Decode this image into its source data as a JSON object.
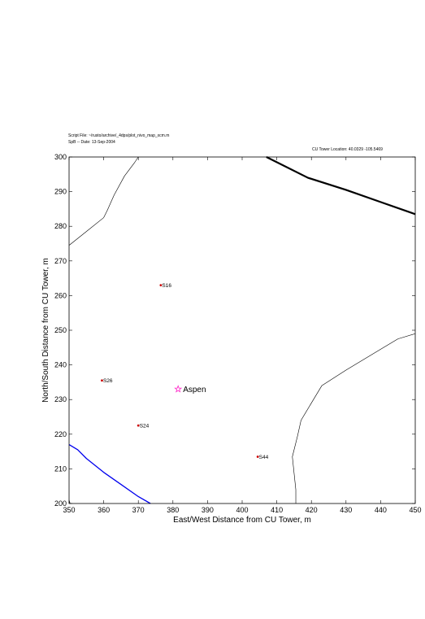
{
  "header": {
    "script_file": "Script File: ~/rusto/archive/_4dps/plot_nivo_map_xcm.m",
    "date": "SpB -- Date: 13-Sep-2004",
    "tower_location": "CU Tower Location:  40.0329  -105.5469"
  },
  "chart_data": {
    "type": "scatter",
    "title": "",
    "xlabel": "East/West Distance from CU Tower, m",
    "ylabel": "North/South Distance from CU Tower, m",
    "xlim": [
      350,
      450
    ],
    "ylim": [
      200,
      300
    ],
    "xticks": [
      350,
      360,
      370,
      380,
      390,
      400,
      410,
      420,
      430,
      440,
      450
    ],
    "yticks": [
      200,
      210,
      220,
      230,
      240,
      250,
      260,
      270,
      280,
      290,
      300
    ],
    "grid": false,
    "sites": [
      {
        "label": "S16",
        "x": 376.5,
        "y": 263,
        "color": "#cc0000"
      },
      {
        "label": "S26",
        "x": 359.5,
        "y": 235.5,
        "color": "#cc0000"
      },
      {
        "label": "S24",
        "x": 370,
        "y": 222.5,
        "color": "#cc0000"
      },
      {
        "label": "S44",
        "x": 404.5,
        "y": 213.5,
        "color": "#cc0000"
      }
    ],
    "named_points": [
      {
        "label": "Aspen",
        "x": 381.5,
        "y": 233,
        "color": "#ff33cc",
        "marker": "star"
      }
    ],
    "lines": [
      {
        "color": "#000000",
        "width": 0.6,
        "points": [
          [
            350,
            274.5
          ],
          [
            355,
            278.5
          ],
          [
            360,
            282.5
          ],
          [
            361,
            284.5
          ],
          [
            363,
            289
          ],
          [
            366,
            294.5
          ],
          [
            369,
            298.5
          ],
          [
            370,
            300
          ]
        ]
      },
      {
        "color": "#000000",
        "width": 0.6,
        "points": [
          [
            415.5,
            200
          ],
          [
            415.5,
            204
          ],
          [
            414.5,
            213.5
          ],
          [
            416,
            219.5
          ],
          [
            417,
            224
          ],
          [
            420,
            229
          ],
          [
            423,
            234
          ],
          [
            430,
            238.5
          ],
          [
            440,
            244.5
          ],
          [
            445,
            247.5
          ],
          [
            450,
            249
          ]
        ]
      },
      {
        "color": "#000000",
        "width": 2.2,
        "points": [
          [
            407,
            300
          ],
          [
            419,
            294
          ],
          [
            430,
            290.5
          ],
          [
            440,
            287
          ],
          [
            450,
            283.5
          ]
        ]
      },
      {
        "color": "#0000ee",
        "width": 1.3,
        "points": [
          [
            350,
            217
          ],
          [
            352.5,
            215.5
          ],
          [
            355,
            213
          ],
          [
            360,
            209
          ],
          [
            365,
            205.5
          ],
          [
            370,
            202
          ],
          [
            373.5,
            200
          ]
        ]
      },
      {
        "color": "#000000",
        "width": 0.6,
        "points": [
          [
            350,
            201
          ],
          [
            350.3,
            200
          ]
        ]
      }
    ]
  }
}
